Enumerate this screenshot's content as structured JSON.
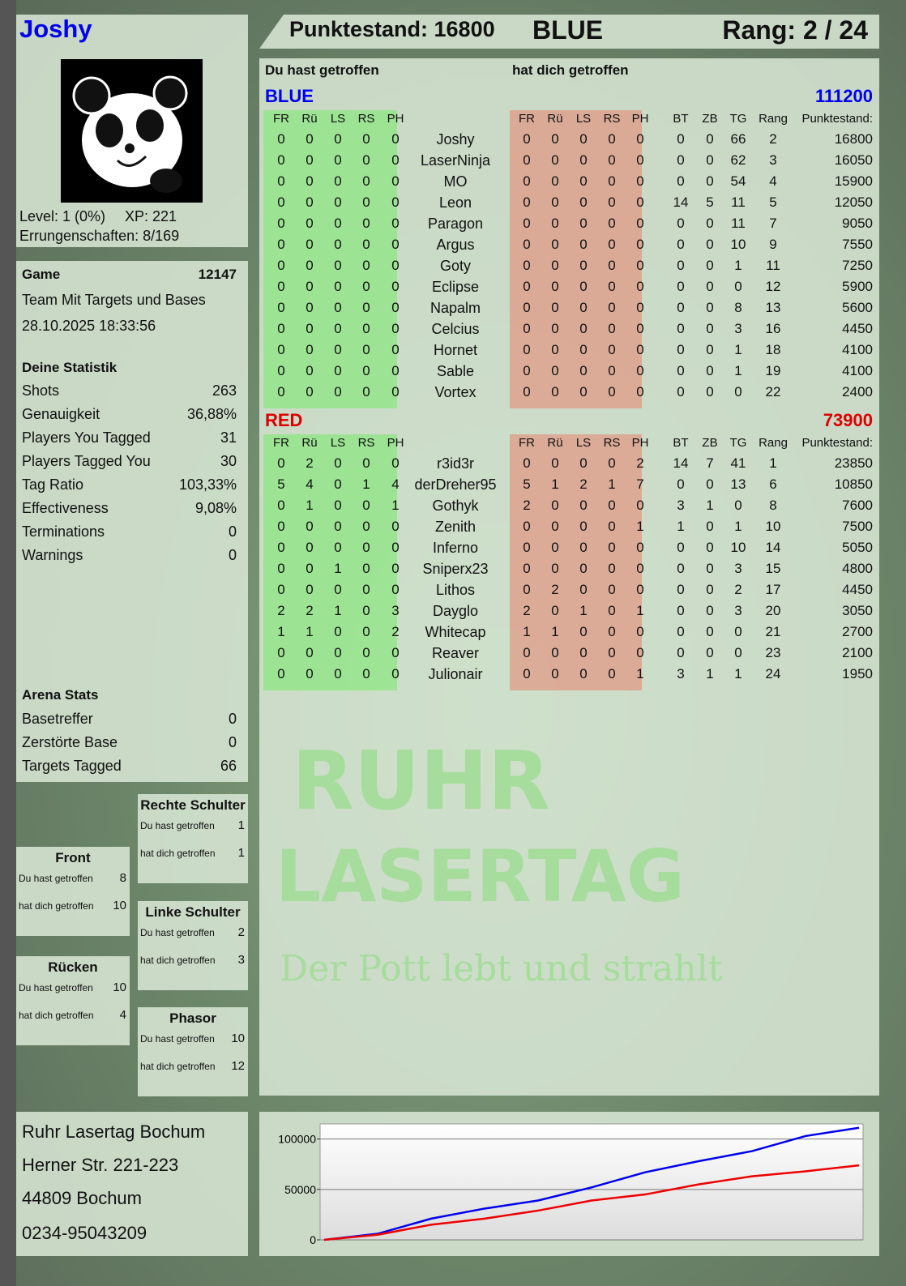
{
  "player": {
    "name": "Joshy",
    "level": "Level: 1 (0%)",
    "xp": "XP: 221",
    "achievements": "Errungenschaften: 8/169"
  },
  "header": {
    "score": "Punktestand: 16800",
    "team": "BLUE",
    "rank": "Rang: 2 / 24"
  },
  "game": {
    "label": "Game",
    "id": "12147",
    "mode": "Team Mit Targets und Bases",
    "datetime": "28.10.2025 18:33:56"
  },
  "stats": {
    "title": "Deine Statistik",
    "rows": [
      {
        "label": "Shots",
        "value": "263"
      },
      {
        "label": "Genauigkeit",
        "value": "36,88%"
      },
      {
        "label": "Players You Tagged",
        "value": "31"
      },
      {
        "label": "Players Tagged You",
        "value": "30"
      },
      {
        "label": "Tag Ratio",
        "value": "103,33%"
      },
      {
        "label": "Effectiveness",
        "value": "9,08%"
      },
      {
        "label": "Terminations",
        "value": "0"
      },
      {
        "label": "Warnings",
        "value": "0"
      }
    ]
  },
  "arena": {
    "title": "Arena Stats",
    "rows": [
      {
        "label": "Basetreffer",
        "value": "0"
      },
      {
        "label": "Zerstörte Base",
        "value": "0"
      },
      {
        "label": "Targets Tagged",
        "value": "66"
      }
    ]
  },
  "zones": [
    {
      "title": "Rechte Schulter",
      "hit_label": "Du hast getroffen",
      "hit": "1",
      "got_label": "hat dich getroffen",
      "got": "1"
    },
    {
      "title": "Front",
      "hit_label": "Du hast getroffen",
      "hit": "8",
      "got_label": "hat dich getroffen",
      "got": "10"
    },
    {
      "title": "Linke Schulter",
      "hit_label": "Du hast getroffen",
      "hit": "2",
      "got_label": "hat dich getroffen",
      "got": "3"
    },
    {
      "title": "Rücken",
      "hit_label": "Du hast getroffen",
      "hit": "10",
      "got_label": "hat dich getroffen",
      "got": "4"
    },
    {
      "title": "Phasor",
      "hit_label": "Du hast getroffen",
      "hit": "10",
      "got_label": "hat dich getroffen",
      "got": "12"
    }
  ],
  "venue": {
    "name": "Ruhr Lasertag Bochum",
    "street": "Herner Str. 221-223",
    "city": "44809 Bochum",
    "phone": "0234-95043209"
  },
  "table": {
    "you_hit": "Du hast getroffen",
    "hit_you": "hat dich getroffen",
    "hit_cols": [
      "FR",
      "Rü",
      "LS",
      "RS",
      "PH"
    ],
    "extra_cols": [
      "BT",
      "ZB",
      "TG",
      "Rang",
      "Punktestand:"
    ],
    "teams": [
      {
        "name": "BLUE",
        "total": "111200",
        "color": "#0000ee",
        "players": [
          [
            "Joshy",
            [
              0,
              0,
              0,
              0,
              0
            ],
            [
              0,
              0,
              0,
              0,
              0
            ],
            [
              0,
              0,
              66,
              2
            ],
            16800
          ],
          [
            "LaserNinja",
            [
              0,
              0,
              0,
              0,
              0
            ],
            [
              0,
              0,
              0,
              0,
              0
            ],
            [
              0,
              0,
              62,
              3
            ],
            16050
          ],
          [
            "MO",
            [
              0,
              0,
              0,
              0,
              0
            ],
            [
              0,
              0,
              0,
              0,
              0
            ],
            [
              0,
              0,
              54,
              4
            ],
            15900
          ],
          [
            "Leon",
            [
              0,
              0,
              0,
              0,
              0
            ],
            [
              0,
              0,
              0,
              0,
              0
            ],
            [
              14,
              5,
              11,
              5
            ],
            12050
          ],
          [
            "Paragon",
            [
              0,
              0,
              0,
              0,
              0
            ],
            [
              0,
              0,
              0,
              0,
              0
            ],
            [
              0,
              0,
              11,
              7
            ],
            9050
          ],
          [
            "Argus",
            [
              0,
              0,
              0,
              0,
              0
            ],
            [
              0,
              0,
              0,
              0,
              0
            ],
            [
              0,
              0,
              10,
              9
            ],
            7550
          ],
          [
            "Goty",
            [
              0,
              0,
              0,
              0,
              0
            ],
            [
              0,
              0,
              0,
              0,
              0
            ],
            [
              0,
              0,
              1,
              11
            ],
            7250
          ],
          [
            "Eclipse",
            [
              0,
              0,
              0,
              0,
              0
            ],
            [
              0,
              0,
              0,
              0,
              0
            ],
            [
              0,
              0,
              0,
              12
            ],
            5900
          ],
          [
            "Napalm",
            [
              0,
              0,
              0,
              0,
              0
            ],
            [
              0,
              0,
              0,
              0,
              0
            ],
            [
              0,
              0,
              8,
              13
            ],
            5600
          ],
          [
            "Celcius",
            [
              0,
              0,
              0,
              0,
              0
            ],
            [
              0,
              0,
              0,
              0,
              0
            ],
            [
              0,
              0,
              3,
              16
            ],
            4450
          ],
          [
            "Hornet",
            [
              0,
              0,
              0,
              0,
              0
            ],
            [
              0,
              0,
              0,
              0,
              0
            ],
            [
              0,
              0,
              1,
              18
            ],
            4100
          ],
          [
            "Sable",
            [
              0,
              0,
              0,
              0,
              0
            ],
            [
              0,
              0,
              0,
              0,
              0
            ],
            [
              0,
              0,
              1,
              19
            ],
            4100
          ],
          [
            "Vortex",
            [
              0,
              0,
              0,
              0,
              0
            ],
            [
              0,
              0,
              0,
              0,
              0
            ],
            [
              0,
              0,
              0,
              22
            ],
            2400
          ]
        ]
      },
      {
        "name": "RED",
        "total": "73900",
        "color": "#dd0000",
        "players": [
          [
            "r3id3r",
            [
              0,
              2,
              0,
              0,
              0
            ],
            [
              0,
              0,
              0,
              0,
              2
            ],
            [
              14,
              7,
              41,
              1
            ],
            23850
          ],
          [
            "derDreher95",
            [
              5,
              4,
              0,
              1,
              4
            ],
            [
              5,
              1,
              2,
              1,
              7
            ],
            [
              0,
              0,
              13,
              6
            ],
            10850
          ],
          [
            "Gothyk",
            [
              0,
              1,
              0,
              0,
              1
            ],
            [
              2,
              0,
              0,
              0,
              0
            ],
            [
              3,
              1,
              0,
              8
            ],
            7600
          ],
          [
            "Zenith",
            [
              0,
              0,
              0,
              0,
              0
            ],
            [
              0,
              0,
              0,
              0,
              1
            ],
            [
              1,
              0,
              1,
              10
            ],
            7500
          ],
          [
            "Inferno",
            [
              0,
              0,
              0,
              0,
              0
            ],
            [
              0,
              0,
              0,
              0,
              0
            ],
            [
              0,
              0,
              10,
              14
            ],
            5050
          ],
          [
            "Sniperx23",
            [
              0,
              0,
              1,
              0,
              0
            ],
            [
              0,
              0,
              0,
              0,
              0
            ],
            [
              0,
              0,
              3,
              15
            ],
            4800
          ],
          [
            "Lithos",
            [
              0,
              0,
              0,
              0,
              0
            ],
            [
              0,
              2,
              0,
              0,
              0
            ],
            [
              0,
              0,
              2,
              17
            ],
            4450
          ],
          [
            "Dayglo",
            [
              2,
              2,
              1,
              0,
              3
            ],
            [
              2,
              0,
              1,
              0,
              1
            ],
            [
              0,
              0,
              3,
              20
            ],
            3050
          ],
          [
            "Whitecap",
            [
              1,
              1,
              0,
              0,
              2
            ],
            [
              1,
              1,
              0,
              0,
              0
            ],
            [
              0,
              0,
              0,
              21
            ],
            2700
          ],
          [
            "Reaver",
            [
              0,
              0,
              0,
              0,
              0
            ],
            [
              0,
              0,
              0,
              0,
              0
            ],
            [
              0,
              0,
              0,
              23
            ],
            2100
          ],
          [
            "Julionair",
            [
              0,
              0,
              0,
              0,
              0
            ],
            [
              0,
              0,
              0,
              0,
              1
            ],
            [
              3,
              1,
              1,
              24
            ],
            1950
          ]
        ]
      }
    ]
  },
  "watermark": {
    "line1": "RUHR",
    "line2": "LASERTAG",
    "line3": "Der Pott lebt und strahlt"
  },
  "chart_data": {
    "type": "line",
    "ylim": [
      0,
      115000
    ],
    "yticks": [
      "0",
      "50000",
      "100000"
    ],
    "grid": true,
    "x": [
      0,
      1,
      2,
      3,
      4,
      5,
      6,
      7,
      8,
      9,
      10
    ],
    "series": [
      {
        "color": "#0000ee",
        "values": [
          0,
          6000,
          21000,
          31000,
          39000,
          52000,
          67000,
          78000,
          88000,
          103000,
          111200
        ]
      },
      {
        "color": "#ee0000",
        "values": [
          0,
          5000,
          15000,
          21000,
          29000,
          39000,
          45000,
          55000,
          63000,
          68000,
          73900
        ]
      }
    ]
  }
}
